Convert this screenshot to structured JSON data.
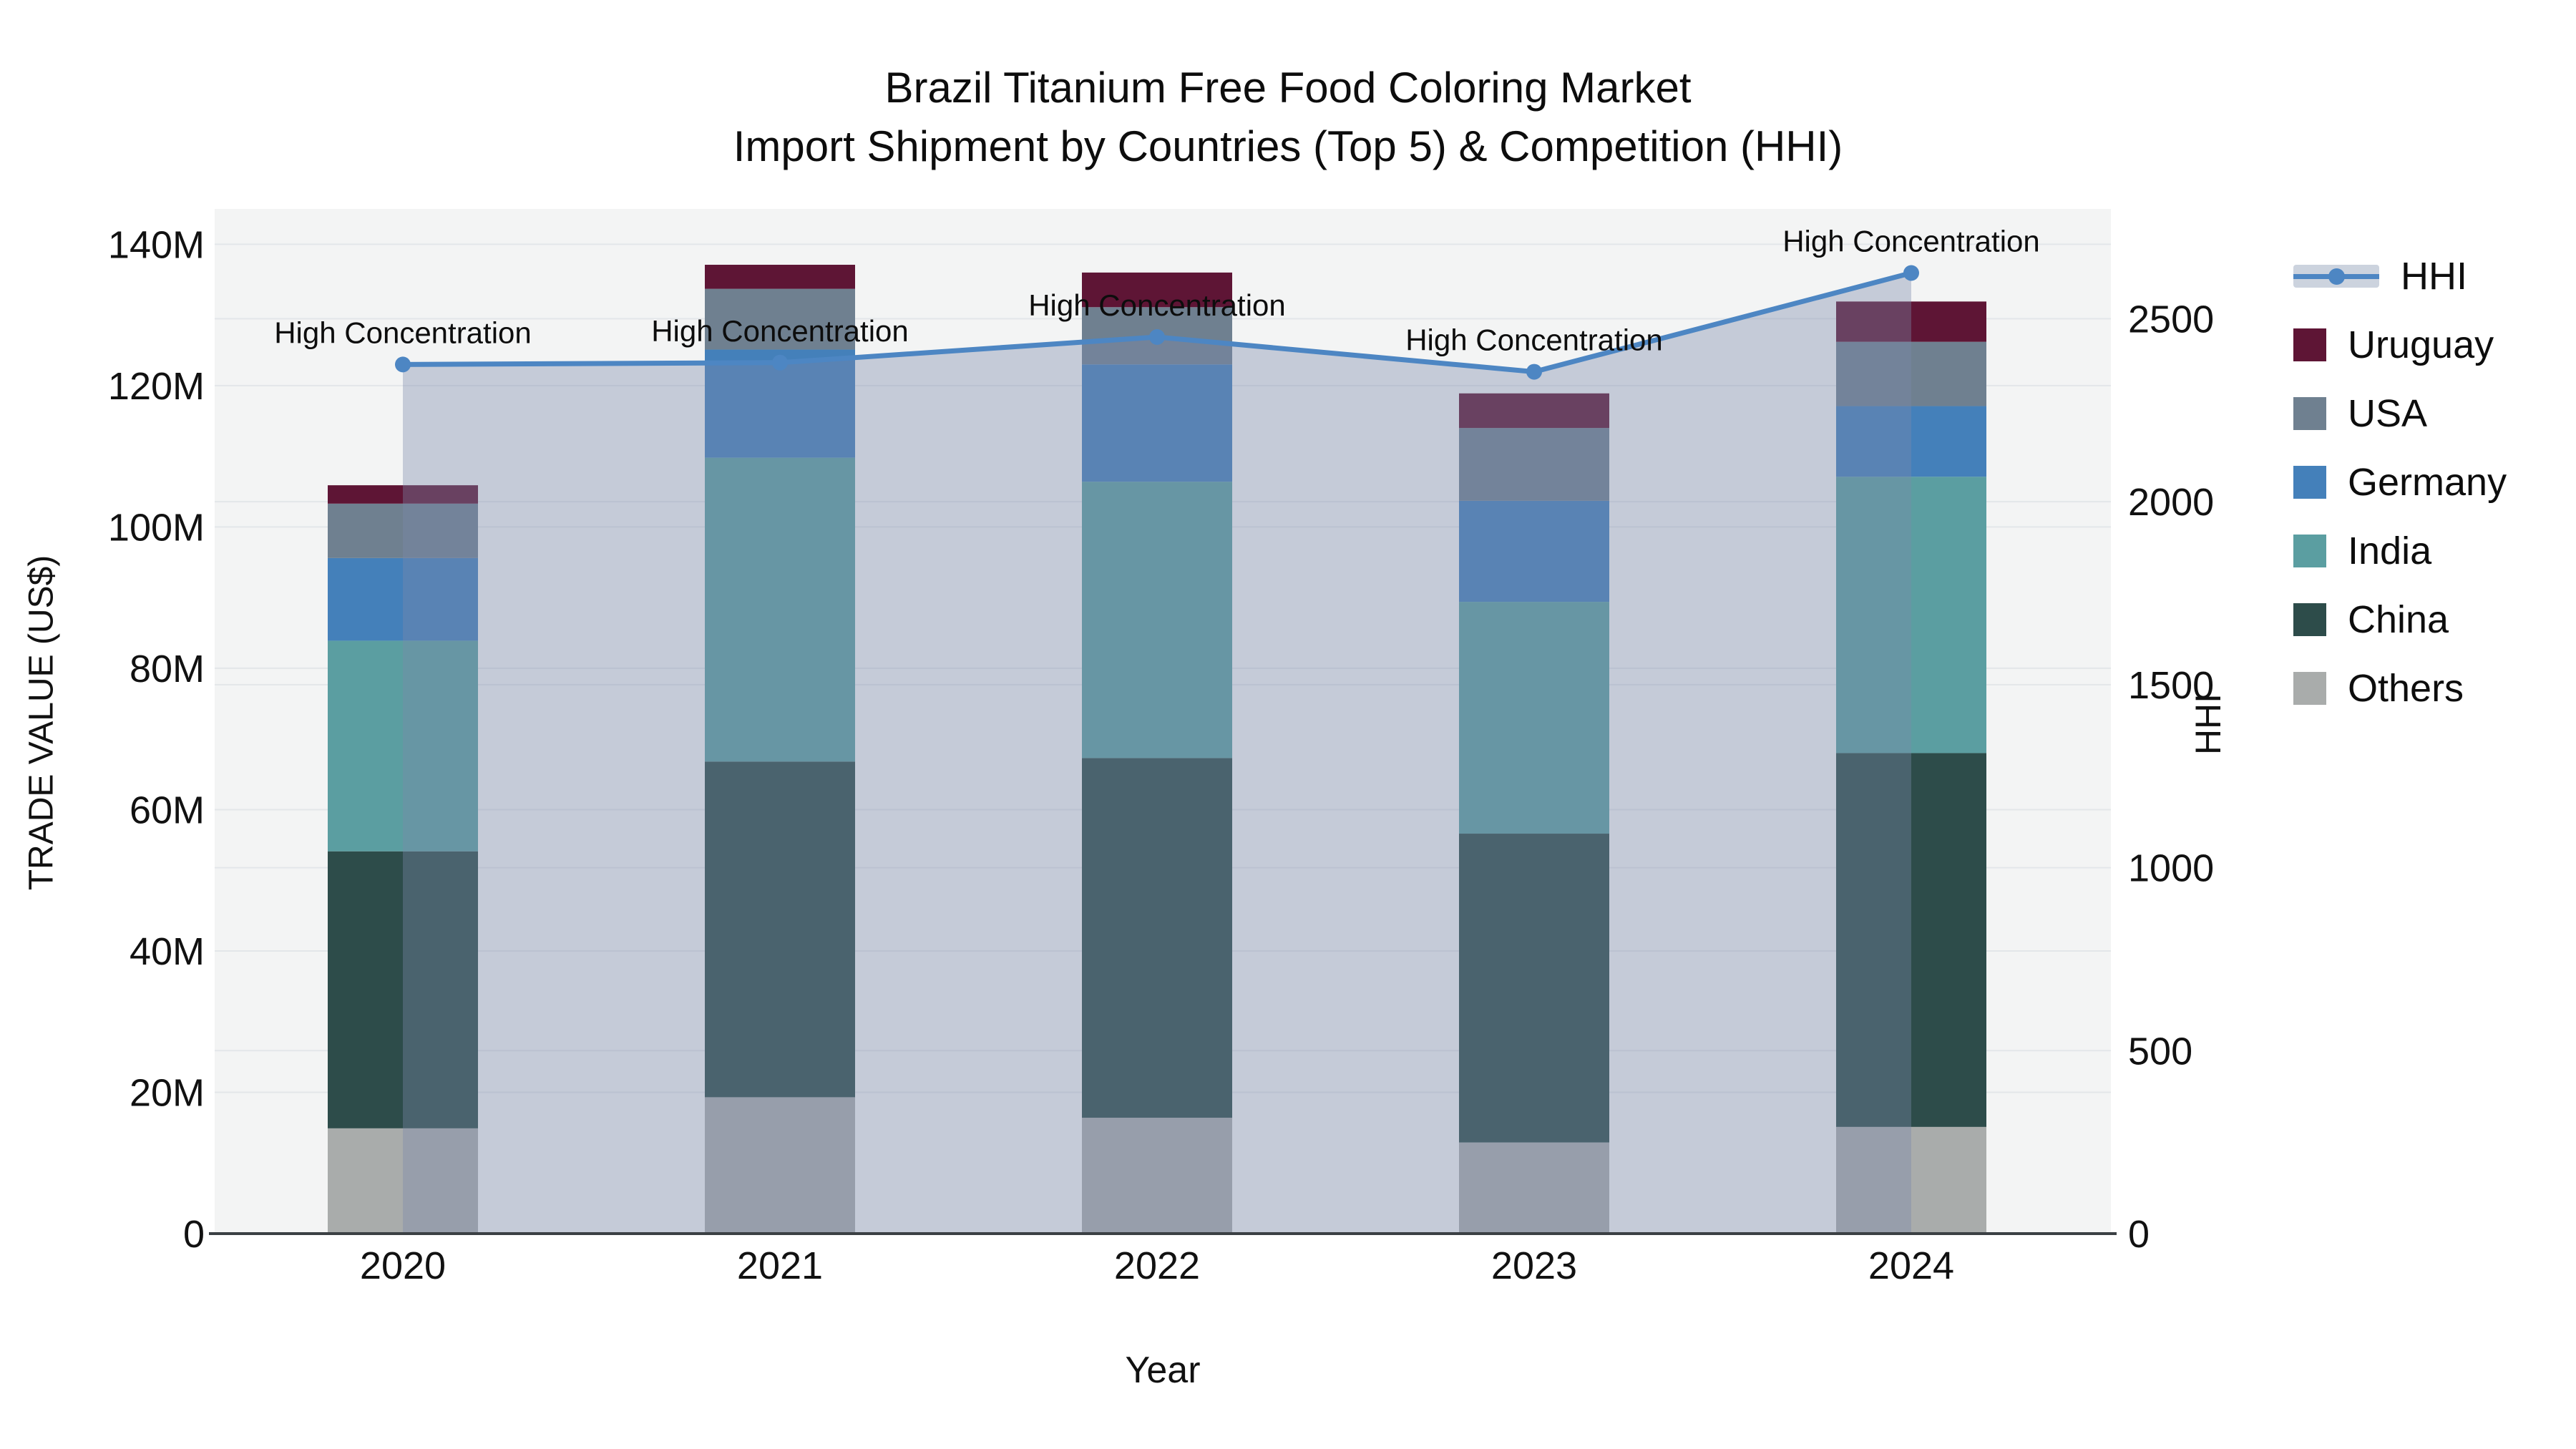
{
  "title": {
    "line1": "Brazil Titanium Free Food Coloring Market",
    "line2": "Import Shipment by Countries (Top 5) & Competition (HHI)"
  },
  "axes": {
    "left_title": "TRADE VALUE (US$)",
    "right_title": "HHI",
    "x_title": "Year"
  },
  "annotation_label": "High Concentration",
  "legend": [
    {
      "key": "hhi",
      "label": "HHI",
      "type": "line"
    },
    {
      "key": "uruguay",
      "label": "Uruguay",
      "type": "bar"
    },
    {
      "key": "usa",
      "label": "USA",
      "type": "bar"
    },
    {
      "key": "germany",
      "label": "Germany",
      "type": "bar"
    },
    {
      "key": "india",
      "label": "India",
      "type": "bar"
    },
    {
      "key": "china",
      "label": "China",
      "type": "bar"
    },
    {
      "key": "others",
      "label": "Others",
      "type": "bar"
    }
  ],
  "colors": {
    "uruguay": "#5e1535",
    "usa": "#6f8090",
    "germany": "#4480ba",
    "india": "#5b9ea1",
    "china": "#2d4c4a",
    "others": "#a9acab",
    "hhi_line": "#4d86c3",
    "hhi_fill": "rgba(123,137,170,0.38)",
    "legend_band": "#ccd3de",
    "plot_bg": "#f3f4f4",
    "grid": "#e3e6e9",
    "axis_line": "#3b4044",
    "text": "#111111"
  },
  "chart_data": {
    "type": "combo",
    "subtype": "stacked-bar + line",
    "categories": [
      "2020",
      "2021",
      "2022",
      "2023",
      "2024"
    ],
    "unit": "million US$",
    "stack_order_bottom_to_top": [
      "Others",
      "China",
      "India",
      "Germany",
      "USA",
      "Uruguay"
    ],
    "series": [
      {
        "name": "Others",
        "color_key": "others",
        "values": [
          14.9,
          19.3,
          16.4,
          12.9,
          15.1
        ]
      },
      {
        "name": "China",
        "color_key": "china",
        "values": [
          39.2,
          47.5,
          50.9,
          43.7,
          52.9
        ]
      },
      {
        "name": "India",
        "color_key": "india",
        "values": [
          29.8,
          43.0,
          39.1,
          32.8,
          39.1
        ]
      },
      {
        "name": "Germany",
        "color_key": "germany",
        "values": [
          11.7,
          15.3,
          16.6,
          14.3,
          10.0
        ]
      },
      {
        "name": "USA",
        "color_key": "usa",
        "values": [
          7.7,
          8.6,
          8.1,
          10.3,
          9.1
        ]
      },
      {
        "name": "Uruguay",
        "color_key": "uruguay",
        "values": [
          2.6,
          3.4,
          4.9,
          4.9,
          5.7
        ]
      }
    ],
    "totals": [
      105.9,
      137.1,
      136.0,
      118.9,
      131.9
    ],
    "line_series": {
      "name": "HHI",
      "axis": "right",
      "values": [
        2375,
        2380,
        2450,
        2355,
        2625
      ]
    },
    "annotations": [
      "High Concentration",
      "High Concentration",
      "High Concentration",
      "High Concentration",
      "High Concentration"
    ],
    "left_axis": {
      "title": "TRADE VALUE (US$)",
      "tick_labels": [
        "0",
        "20M",
        "40M",
        "60M",
        "80M",
        "100M",
        "120M",
        "140M"
      ],
      "tick_values": [
        0,
        20,
        40,
        60,
        80,
        100,
        120,
        140
      ],
      "range": [
        0,
        145
      ]
    },
    "right_axis": {
      "title": "HHI",
      "tick_labels": [
        "0",
        "500",
        "1000",
        "1500",
        "2000",
        "2500"
      ],
      "tick_values": [
        0,
        500,
        1000,
        1500,
        2000,
        2500
      ],
      "range": [
        0,
        2800
      ]
    },
    "x_axis": {
      "title": "Year"
    },
    "grid": "horizontal",
    "legend_position": "right"
  }
}
